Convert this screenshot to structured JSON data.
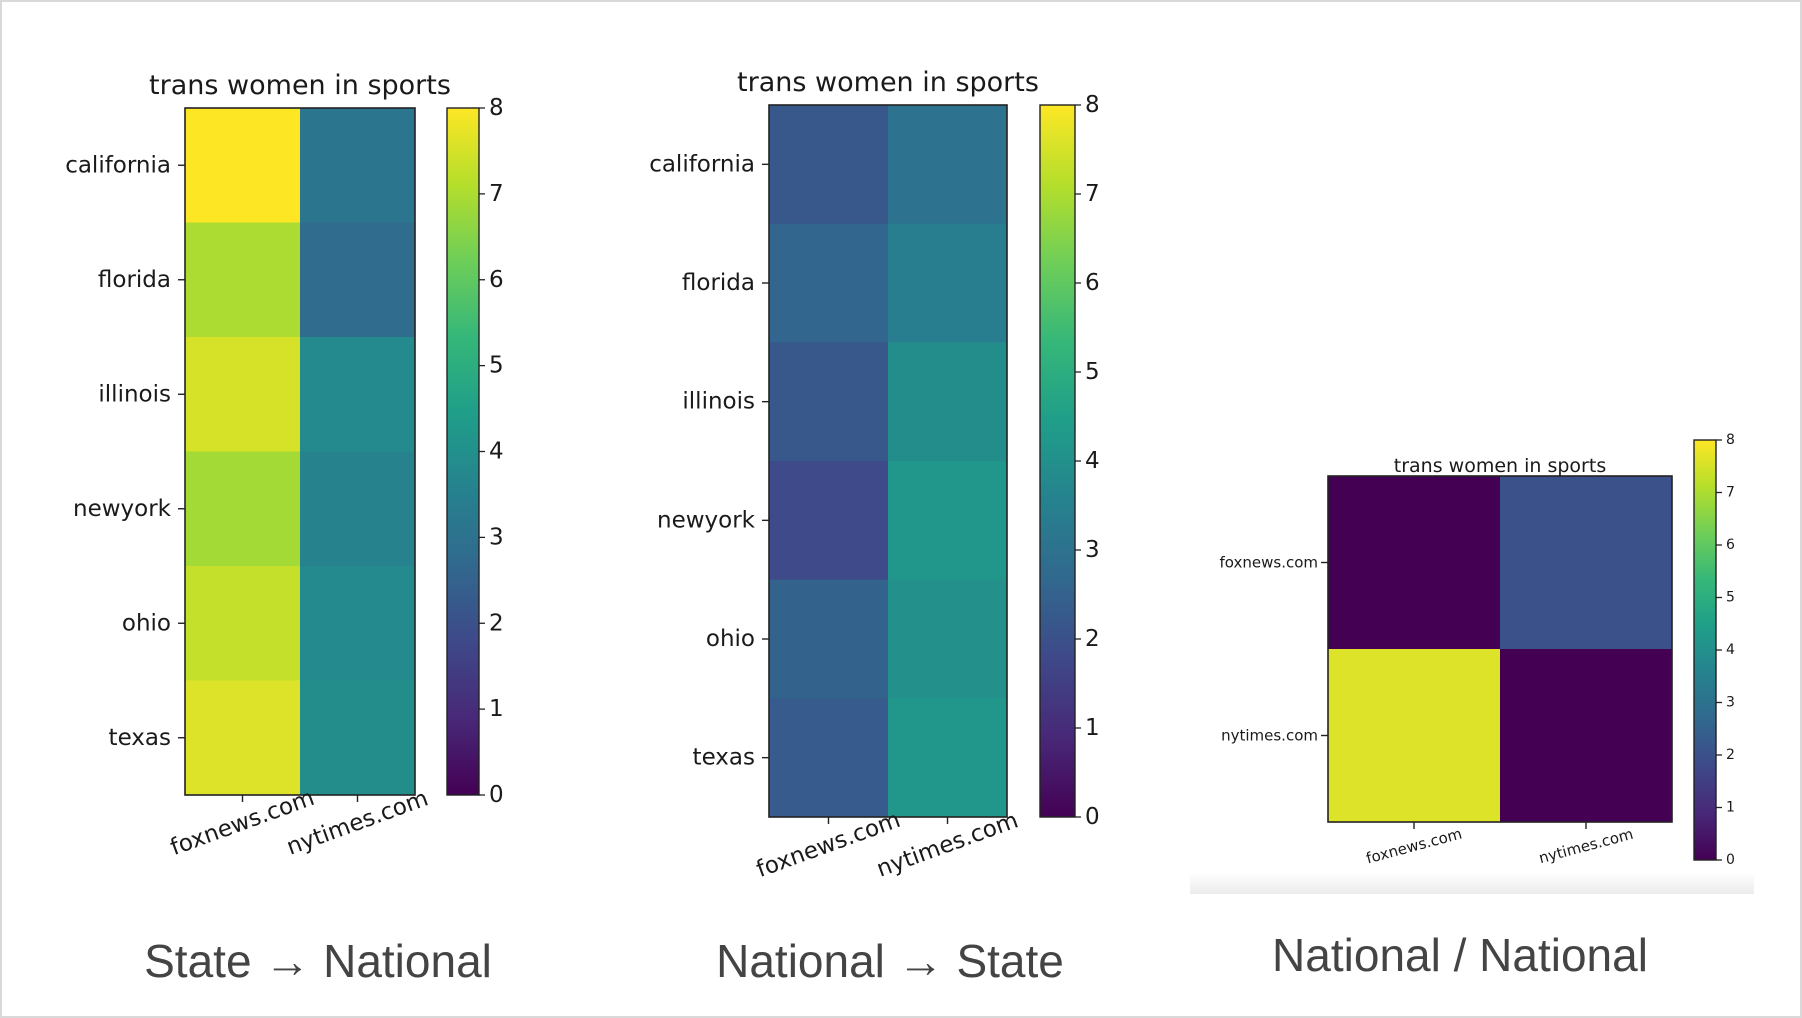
{
  "colormap": [
    "#440154",
    "#482878",
    "#3e4989",
    "#31688e",
    "#26828e",
    "#1f9e89",
    "#35b779",
    "#6ece58",
    "#b5de2b",
    "#fde725"
  ],
  "chart_data": [
    {
      "type": "heatmap",
      "title": "trans women in sports",
      "caption": "State → National",
      "rows": [
        "california",
        "florida",
        "illinois",
        "newyork",
        "ohio",
        "texas"
      ],
      "columns": [
        "foxnews.com",
        "nytimes.com"
      ],
      "values": [
        [
          8.0,
          3.1
        ],
        [
          7.0,
          2.8
        ],
        [
          7.5,
          3.8
        ],
        [
          6.9,
          3.6
        ],
        [
          7.3,
          3.8
        ],
        [
          7.6,
          3.9
        ]
      ],
      "colorbar": {
        "min": 0,
        "max": 8,
        "ticks": [
          "0",
          "1",
          "2",
          "3",
          "4",
          "5",
          "6",
          "7",
          "8"
        ]
      }
    },
    {
      "type": "heatmap",
      "title": "trans women in sports",
      "caption": "National → State",
      "rows": [
        "california",
        "florida",
        "illinois",
        "newyork",
        "ohio",
        "texas"
      ],
      "columns": [
        "foxnews.com",
        "nytimes.com"
      ],
      "values": [
        [
          2.2,
          3.0
        ],
        [
          2.6,
          3.4
        ],
        [
          2.2,
          3.9
        ],
        [
          1.8,
          4.2
        ],
        [
          2.5,
          4.0
        ],
        [
          2.3,
          4.2
        ]
      ],
      "colorbar": {
        "min": 0,
        "max": 8,
        "ticks": [
          "0",
          "1",
          "2",
          "3",
          "4",
          "5",
          "6",
          "7",
          "8"
        ]
      }
    },
    {
      "type": "heatmap",
      "title": "trans women in sports",
      "caption": "National / National",
      "rows": [
        "foxnews.com",
        "nytimes.com"
      ],
      "columns": [
        "foxnews.com",
        "nytimes.com"
      ],
      "values": [
        [
          0,
          2.0
        ],
        [
          7.6,
          0
        ]
      ],
      "colorbar": {
        "min": 0,
        "max": 8,
        "ticks": [
          "0",
          "1",
          "2",
          "3",
          "4",
          "5",
          "6",
          "7",
          "8"
        ]
      }
    }
  ]
}
